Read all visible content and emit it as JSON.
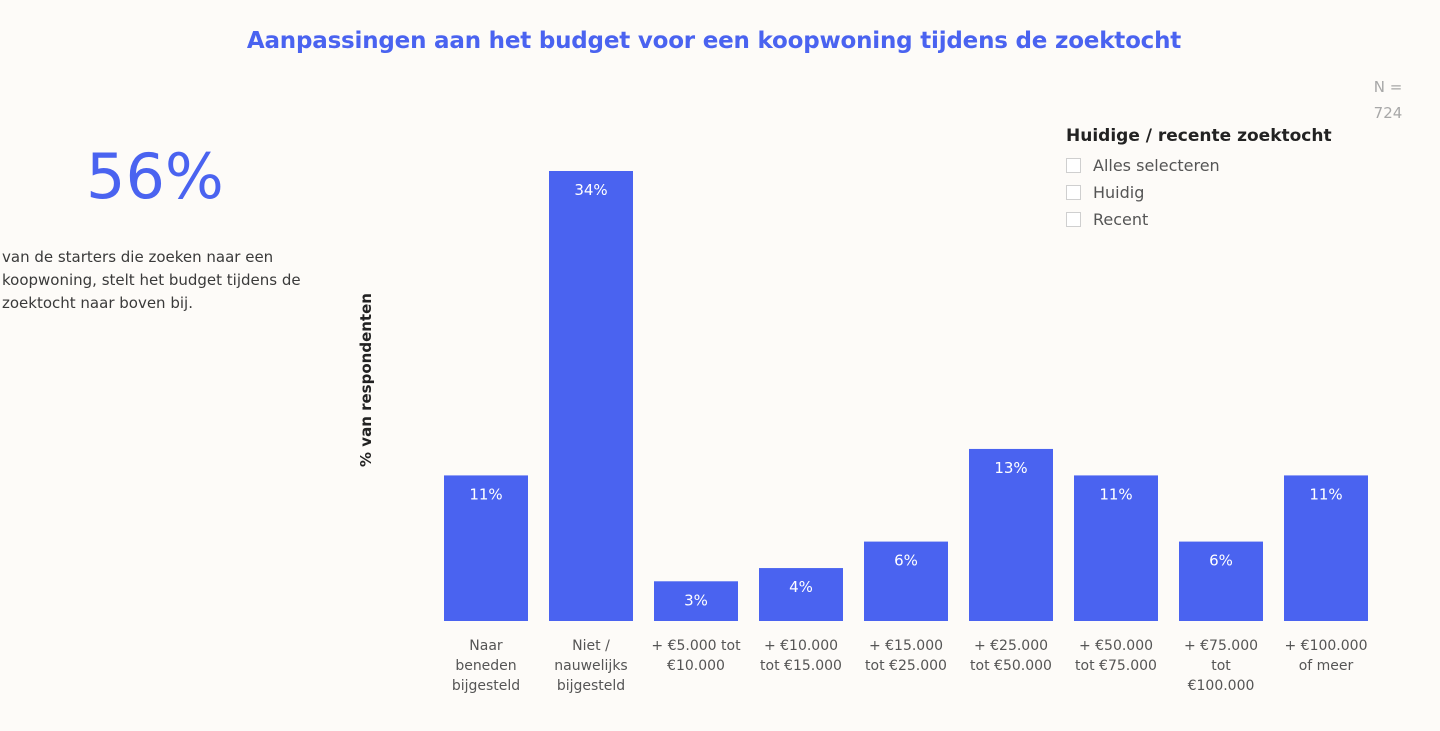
{
  "title": "Aanpassingen aan het budget voor een koopwoning tijdens de zoektocht",
  "n_label": "N =\n724",
  "kpi": {
    "value": "56%",
    "text": "van de starters die zoeken naar een koopwoning, stelt het budget tijdens de zoektocht naar boven bij."
  },
  "filter": {
    "title": "Huidige / recente zoektocht",
    "options": [
      "Alles selecteren",
      "Huidig",
      "Recent"
    ]
  },
  "colors": {
    "bar": "#4a63f0",
    "accent": "#4a63f0"
  },
  "chart_data": {
    "type": "bar",
    "ylabel": "% van respondenten",
    "categories": [
      "Naar beneden bijgesteld",
      "Niet / nauwelijks bijgesteld",
      "+ €5.000 tot €10.000",
      "+ €10.000 tot €15.000",
      "+ €15.000 tot €25.000",
      "+ €25.000 tot €50.000",
      "+ €50.000 tot €75.000",
      "+ €75.000 tot €100.000",
      "+ €100.000 of meer"
    ],
    "category_lines": [
      [
        "Naar",
        "beneden",
        "bijgesteld"
      ],
      [
        "Niet /",
        "nauwelijks",
        "bijgesteld"
      ],
      [
        "+ €5.000 tot",
        "€10.000"
      ],
      [
        "+ €10.000",
        "tot €15.000"
      ],
      [
        "+ €15.000",
        "tot €25.000"
      ],
      [
        "+ €25.000",
        "tot €50.000"
      ],
      [
        "+ €50.000",
        "tot €75.000"
      ],
      [
        "+ €75.000",
        "tot",
        "€100.000"
      ],
      [
        "+ €100.000",
        "of meer"
      ]
    ],
    "values": [
      11,
      34,
      3,
      4,
      6,
      13,
      11,
      6,
      11
    ],
    "value_labels": [
      "11%",
      "34%",
      "3%",
      "4%",
      "6%",
      "13%",
      "11%",
      "6%",
      "11%"
    ],
    "ylim": [
      0,
      34
    ],
    "grid": false,
    "legend": "none"
  }
}
